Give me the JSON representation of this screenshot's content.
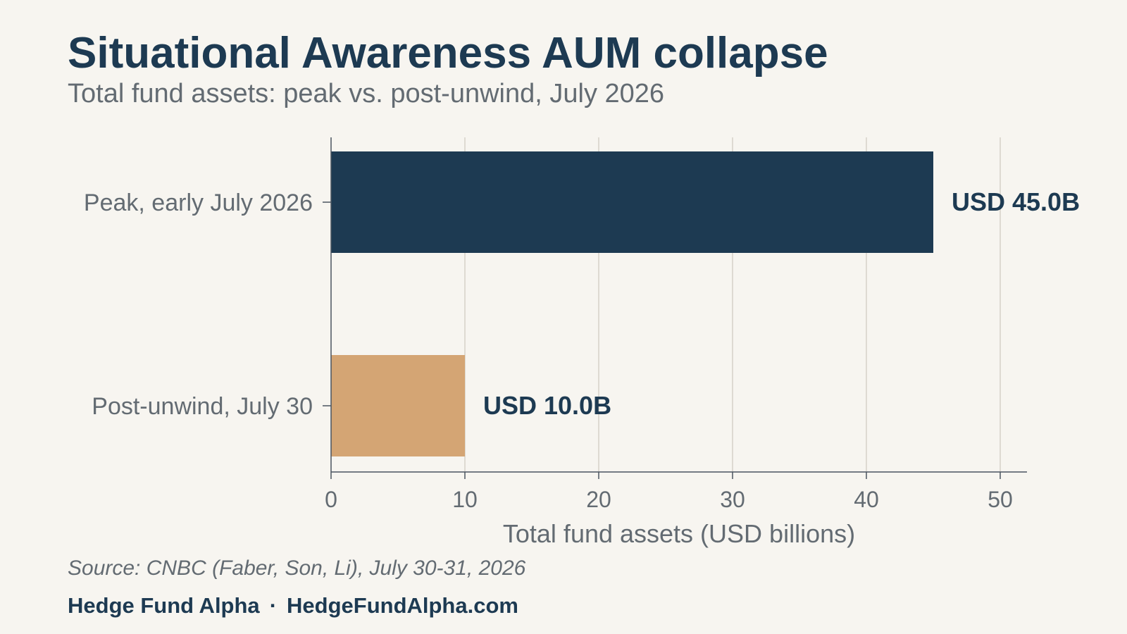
{
  "header": {
    "title": "Situational Awareness AUM collapse",
    "subtitle": "Total fund assets: peak vs. post-unwind, July 2026"
  },
  "chart_data": {
    "type": "bar",
    "orientation": "horizontal",
    "categories": [
      "Peak, early July 2026",
      "Post-unwind, July 30"
    ],
    "values": [
      45.0,
      10.0
    ],
    "data_labels": [
      "USD 45.0B",
      "USD 10.0B"
    ],
    "colors": [
      "#1d3a52",
      "#d4a574"
    ],
    "xlabel": "Total fund assets (USD billions)",
    "ylabel": "",
    "xlim": [
      0,
      52
    ],
    "xticks": [
      0,
      10,
      20,
      30,
      40,
      50
    ],
    "grid": "vertical"
  },
  "footer": {
    "source": "Source: CNBC (Faber, Son, Li), July 30-31, 2026",
    "brand_name": "Hedge Fund Alpha",
    "separator": "·",
    "brand_url": "HedgeFundAlpha.com"
  }
}
